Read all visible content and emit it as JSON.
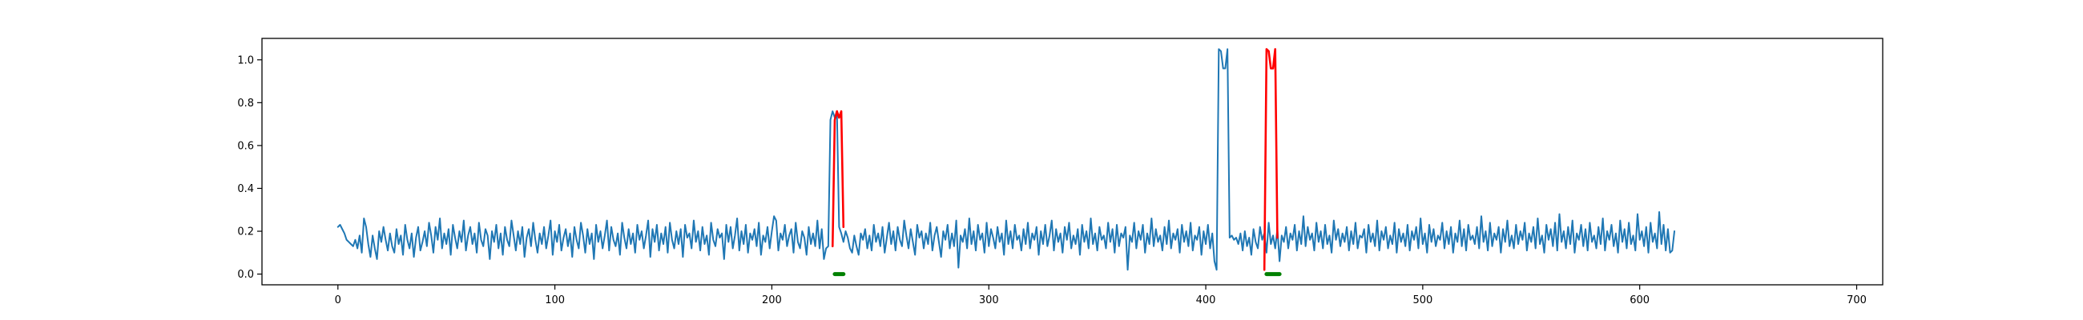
{
  "chart_data": {
    "type": "line",
    "title": "",
    "xlabel": "",
    "ylabel": "",
    "xlim": [
      -35,
      712
    ],
    "ylim": [
      -0.05,
      1.1
    ],
    "grid": false,
    "legend": "none",
    "x_ticks": [
      0,
      100,
      200,
      300,
      400,
      500,
      600,
      700
    ],
    "y_ticks": [
      0.0,
      0.2,
      0.4,
      0.6,
      0.8,
      1.0
    ],
    "x_tick_labels": [
      "0",
      "100",
      "200",
      "300",
      "400",
      "500",
      "600",
      "700"
    ],
    "y_tick_labels": [
      "0.0",
      "0.2",
      "0.4",
      "0.6",
      "0.8",
      "1.0"
    ],
    "series": [
      {
        "role": "signal",
        "color": "#1f77b4",
        "x_start": 0,
        "x_step": 1,
        "values": [
          0.22,
          0.23,
          0.21,
          0.19,
          0.16,
          0.15,
          0.14,
          0.13,
          0.16,
          0.12,
          0.18,
          0.1,
          0.26,
          0.22,
          0.14,
          0.08,
          0.18,
          0.12,
          0.07,
          0.2,
          0.15,
          0.22,
          0.16,
          0.11,
          0.19,
          0.13,
          0.1,
          0.21,
          0.14,
          0.18,
          0.09,
          0.23,
          0.16,
          0.12,
          0.19,
          0.08,
          0.17,
          0.22,
          0.11,
          0.15,
          0.2,
          0.13,
          0.24,
          0.18,
          0.1,
          0.22,
          0.16,
          0.26,
          0.12,
          0.19,
          0.14,
          0.21,
          0.09,
          0.23,
          0.17,
          0.12,
          0.2,
          0.15,
          0.25,
          0.11,
          0.18,
          0.22,
          0.14,
          0.19,
          0.1,
          0.24,
          0.16,
          0.13,
          0.21,
          0.18,
          0.07,
          0.2,
          0.15,
          0.23,
          0.12,
          0.19,
          0.09,
          0.22,
          0.16,
          0.13,
          0.25,
          0.18,
          0.11,
          0.2,
          0.14,
          0.22,
          0.08,
          0.17,
          0.21,
          0.13,
          0.24,
          0.16,
          0.1,
          0.19,
          0.14,
          0.22,
          0.12,
          0.18,
          0.25,
          0.09,
          0.2,
          0.15,
          0.23,
          0.11,
          0.17,
          0.21,
          0.13,
          0.19,
          0.08,
          0.22,
          0.16,
          0.12,
          0.24,
          0.18,
          0.1,
          0.21,
          0.14,
          0.19,
          0.07,
          0.23,
          0.15,
          0.2,
          0.12,
          0.18,
          0.25,
          0.11,
          0.22,
          0.16,
          0.13,
          0.19,
          0.09,
          0.24,
          0.17,
          0.12,
          0.21,
          0.14,
          0.19,
          0.1,
          0.23,
          0.16,
          0.2,
          0.12,
          0.18,
          0.25,
          0.08,
          0.21,
          0.15,
          0.23,
          0.11,
          0.19,
          0.14,
          0.22,
          0.1,
          0.24,
          0.16,
          0.12,
          0.2,
          0.14,
          0.21,
          0.08,
          0.23,
          0.17,
          0.19,
          0.12,
          0.25,
          0.15,
          0.2,
          0.11,
          0.22,
          0.14,
          0.18,
          0.09,
          0.24,
          0.16,
          0.13,
          0.21,
          0.17,
          0.19,
          0.07,
          0.23,
          0.15,
          0.22,
          0.12,
          0.18,
          0.26,
          0.11,
          0.2,
          0.14,
          0.23,
          0.1,
          0.19,
          0.16,
          0.21,
          0.13,
          0.24,
          0.09,
          0.18,
          0.15,
          0.22,
          0.12,
          0.2,
          0.27,
          0.25,
          0.11,
          0.19,
          0.16,
          0.23,
          0.13,
          0.18,
          0.21,
          0.1,
          0.24,
          0.15,
          0.12,
          0.2,
          0.17,
          0.09,
          0.22,
          0.14,
          0.19,
          0.13,
          0.25,
          0.12,
          0.21,
          0.07,
          0.12,
          0.13,
          0.72,
          0.76,
          0.73,
          0.76,
          0.22,
          0.19,
          0.15,
          0.2,
          0.17,
          0.12,
          0.1,
          0.18,
          0.13,
          0.09,
          0.19,
          0.16,
          0.21,
          0.12,
          0.18,
          0.11,
          0.23,
          0.15,
          0.19,
          0.13,
          0.22,
          0.1,
          0.17,
          0.24,
          0.14,
          0.2,
          0.11,
          0.22,
          0.16,
          0.13,
          0.25,
          0.18,
          0.12,
          0.21,
          0.15,
          0.09,
          0.23,
          0.17,
          0.2,
          0.12,
          0.19,
          0.14,
          0.24,
          0.11,
          0.18,
          0.22,
          0.15,
          0.08,
          0.2,
          0.16,
          0.23,
          0.12,
          0.19,
          0.13,
          0.25,
          0.03,
          0.18,
          0.15,
          0.21,
          0.12,
          0.26,
          0.14,
          0.2,
          0.11,
          0.23,
          0.16,
          0.19,
          0.1,
          0.24,
          0.13,
          0.21,
          0.17,
          0.12,
          0.22,
          0.15,
          0.19,
          0.09,
          0.25,
          0.14,
          0.2,
          0.12,
          0.23,
          0.16,
          0.18,
          0.11,
          0.21,
          0.14,
          0.24,
          0.12,
          0.19,
          0.16,
          0.22,
          0.09,
          0.2,
          0.14,
          0.23,
          0.13,
          0.18,
          0.25,
          0.11,
          0.21,
          0.15,
          0.19,
          0.1,
          0.22,
          0.16,
          0.24,
          0.12,
          0.18,
          0.14,
          0.21,
          0.09,
          0.23,
          0.15,
          0.2,
          0.12,
          0.26,
          0.14,
          0.19,
          0.11,
          0.22,
          0.16,
          0.18,
          0.12,
          0.24,
          0.15,
          0.21,
          0.1,
          0.23,
          0.13,
          0.19,
          0.17,
          0.22,
          0.02,
          0.18,
          0.15,
          0.24,
          0.12,
          0.2,
          0.16,
          0.23,
          0.1,
          0.19,
          0.14,
          0.26,
          0.13,
          0.21,
          0.15,
          0.18,
          0.11,
          0.22,
          0.14,
          0.25,
          0.12,
          0.19,
          0.16,
          0.21,
          0.1,
          0.23,
          0.15,
          0.2,
          0.13,
          0.24,
          0.11,
          0.18,
          0.16,
          0.22,
          0.09,
          0.2,
          0.14,
          0.23,
          0.12,
          0.19,
          0.06,
          0.02,
          1.05,
          1.04,
          0.96,
          0.96,
          1.05,
          0.17,
          0.18,
          0.16,
          0.17,
          0.14,
          0.19,
          0.11,
          0.2,
          0.13,
          0.17,
          0.09,
          0.21,
          0.15,
          0.12,
          0.22,
          0.16,
          0.19,
          0.1,
          0.24,
          0.14,
          0.18,
          0.12,
          0.21,
          0.06,
          0.18,
          0.15,
          0.22,
          0.12,
          0.19,
          0.16,
          0.23,
          0.11,
          0.2,
          0.14,
          0.27,
          0.13,
          0.22,
          0.16,
          0.19,
          0.11,
          0.24,
          0.15,
          0.2,
          0.12,
          0.23,
          0.14,
          0.18,
          0.1,
          0.25,
          0.16,
          0.21,
          0.13,
          0.19,
          0.15,
          0.22,
          0.11,
          0.2,
          0.14,
          0.24,
          0.12,
          0.18,
          0.17,
          0.21,
          0.1,
          0.23,
          0.15,
          0.19,
          0.13,
          0.25,
          0.11,
          0.2,
          0.16,
          0.22,
          0.12,
          0.18,
          0.14,
          0.24,
          0.1,
          0.21,
          0.15,
          0.19,
          0.13,
          0.23,
          0.11,
          0.2,
          0.16,
          0.22,
          0.12,
          0.26,
          0.14,
          0.19,
          0.1,
          0.23,
          0.15,
          0.21,
          0.13,
          0.18,
          0.16,
          0.24,
          0.12,
          0.2,
          0.14,
          0.22,
          0.1,
          0.19,
          0.15,
          0.25,
          0.13,
          0.21,
          0.11,
          0.23,
          0.16,
          0.18,
          0.14,
          0.22,
          0.12,
          0.27,
          0.15,
          0.2,
          0.11,
          0.24,
          0.13,
          0.19,
          0.16,
          0.22,
          0.1,
          0.21,
          0.15,
          0.25,
          0.13,
          0.18,
          0.12,
          0.23,
          0.14,
          0.2,
          0.16,
          0.24,
          0.11,
          0.19,
          0.15,
          0.22,
          0.12,
          0.26,
          0.14,
          0.18,
          0.1,
          0.23,
          0.16,
          0.21,
          0.13,
          0.24,
          0.11,
          0.28,
          0.15,
          0.2,
          0.12,
          0.22,
          0.14,
          0.25,
          0.1,
          0.19,
          0.16,
          0.23,
          0.13,
          0.21,
          0.11,
          0.24,
          0.15,
          0.18,
          0.12,
          0.22,
          0.14,
          0.26,
          0.11,
          0.2,
          0.16,
          0.23,
          0.13,
          0.19,
          0.1,
          0.25,
          0.15,
          0.21,
          0.12,
          0.24,
          0.14,
          0.18,
          0.11,
          0.28,
          0.16,
          0.2,
          0.13,
          0.22,
          0.1,
          0.24,
          0.15,
          0.19,
          0.12,
          0.29,
          0.14,
          0.23,
          0.11,
          0.21,
          0.1,
          0.11,
          0.2
        ]
      },
      {
        "role": "anomaly-1",
        "color": "#ff0000",
        "x": [
          228,
          229,
          230,
          231,
          232,
          233
        ],
        "values": [
          0.13,
          0.72,
          0.76,
          0.73,
          0.76,
          0.22
        ]
      },
      {
        "role": "anomaly-2",
        "color": "#ff0000",
        "x": [
          427,
          428,
          429,
          430,
          431,
          432,
          433
        ],
        "values": [
          0.02,
          1.05,
          1.04,
          0.96,
          0.96,
          1.05,
          0.17
        ]
      }
    ],
    "markers": {
      "color": "#008000",
      "y": 0.0,
      "segments": [
        {
          "x_start": 229,
          "x_end": 233
        },
        {
          "x_start": 428,
          "x_end": 434
        }
      ]
    }
  }
}
